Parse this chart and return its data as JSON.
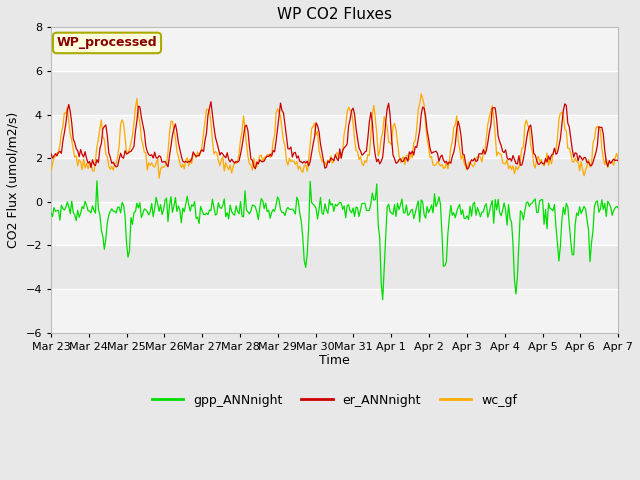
{
  "title": "WP CO2 Fluxes",
  "ylabel": "CO2 Flux (umol/m2/s)",
  "xlabel": "Time",
  "ylim": [
    -6,
    8
  ],
  "yticks": [
    -6,
    -4,
    -2,
    0,
    2,
    4,
    6,
    8
  ],
  "fig_bg_color": "#e8e8e8",
  "axes_bg_color": "#e8e8e8",
  "white_band_color": "#f5f5f5",
  "grid_color": "#cccccc",
  "line_colors": {
    "gpp": "#00dd00",
    "er": "#cc0000",
    "wc": "#ffaa00"
  },
  "legend_label": "WP_processed",
  "legend_label_color": "#880000",
  "legend_box_facecolor": "#ffffe0",
  "legend_box_edgecolor": "#aaaa00",
  "n_points": 384,
  "xtick_labels": [
    "Mar 23",
    "Mar 24",
    "Mar 25",
    "Mar 26",
    "Mar 27",
    "Mar 28",
    "Mar 29",
    "Mar 30",
    "Mar 31",
    "Apr 1",
    "Apr 2",
    "Apr 3",
    "Apr 4",
    "Apr 5",
    "Apr 6",
    "Apr 7"
  ]
}
